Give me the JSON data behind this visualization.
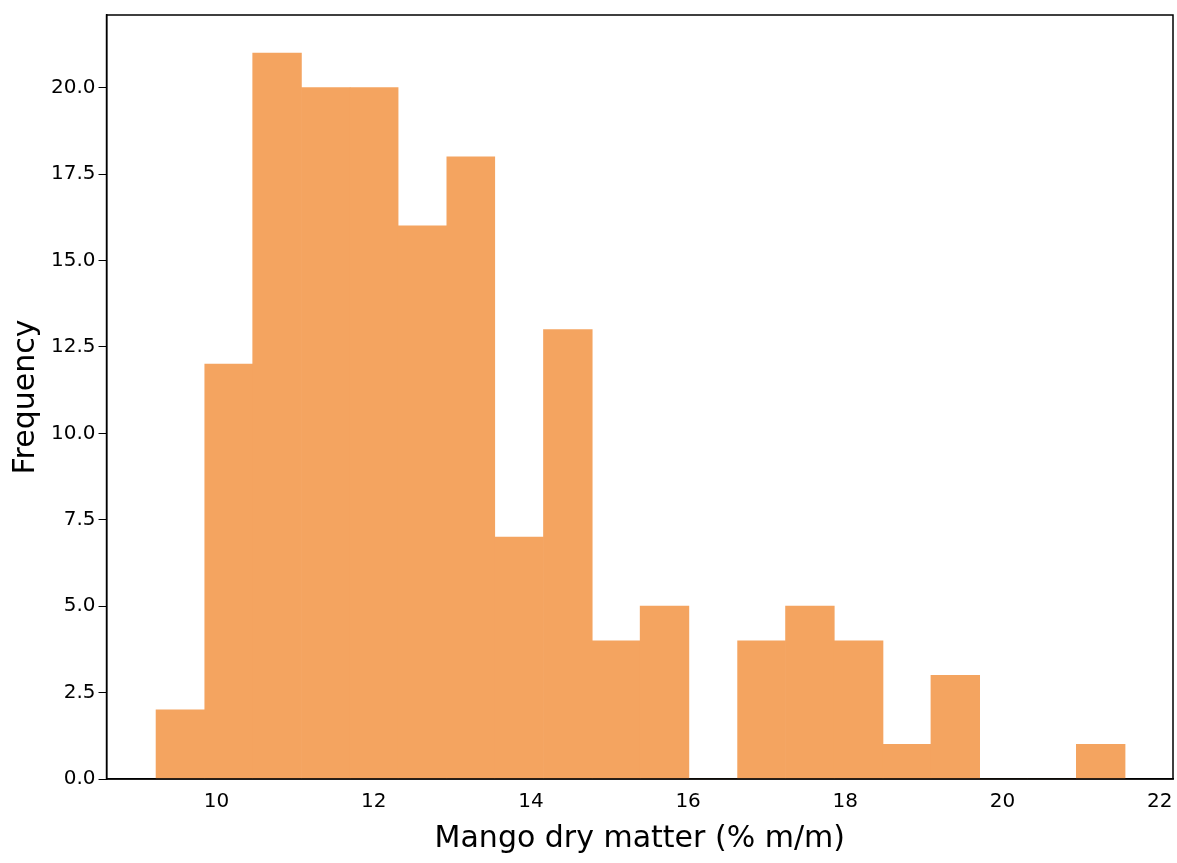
{
  "chart_data": {
    "type": "histogram",
    "xlabel": "Mango dry matter (% m/m)",
    "ylabel": "Frequency",
    "color": "#f4a460",
    "bins": [
      9.23,
      9.85,
      10.46,
      11.08,
      11.7,
      12.31,
      12.93,
      13.54,
      14.16,
      14.78,
      15.39,
      16.01,
      16.63,
      17.24,
      17.86,
      18.48,
      19.09,
      19.71,
      20.32,
      20.94,
      21.56
    ],
    "values": [
      2,
      12,
      21,
      20,
      20,
      16,
      18,
      7,
      13,
      4,
      5,
      0,
      4,
      5,
      4,
      1,
      3,
      0,
      0,
      1
    ],
    "xlim": [
      8.6,
      22.17
    ],
    "xticks": [
      10,
      12,
      14,
      16,
      18,
      20,
      22
    ],
    "ylim": [
      0,
      22.1
    ],
    "yticks": [
      {
        "value": 0,
        "label": "0.0"
      },
      {
        "value": 2.5,
        "label": "2.5"
      },
      {
        "value": 5,
        "label": "5.0"
      },
      {
        "value": 7.5,
        "label": "7.5"
      },
      {
        "value": 10,
        "label": "10.0"
      },
      {
        "value": 12.5,
        "label": "12.5"
      },
      {
        "value": 15,
        "label": "15.0"
      },
      {
        "value": 17.5,
        "label": "17.5"
      },
      {
        "value": 20,
        "label": "20.0"
      }
    ],
    "grid": false,
    "legend": false
  }
}
